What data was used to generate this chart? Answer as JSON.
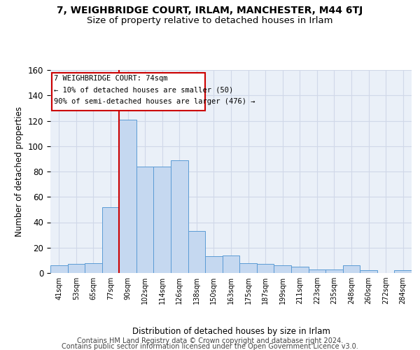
{
  "title": "7, WEIGHBRIDGE COURT, IRLAM, MANCHESTER, M44 6TJ",
  "subtitle": "Size of property relative to detached houses in Irlam",
  "xlabel": "Distribution of detached houses by size in Irlam",
  "ylabel": "Number of detached properties",
  "bar_labels": [
    "41sqm",
    "53sqm",
    "65sqm",
    "77sqm",
    "90sqm",
    "102sqm",
    "114sqm",
    "126sqm",
    "138sqm",
    "150sqm",
    "163sqm",
    "175sqm",
    "187sqm",
    "199sqm",
    "211sqm",
    "223sqm",
    "235sqm",
    "248sqm",
    "260sqm",
    "272sqm",
    "284sqm"
  ],
  "bar_values": [
    6,
    7,
    8,
    52,
    121,
    84,
    84,
    89,
    33,
    13,
    14,
    8,
    7,
    6,
    5,
    3,
    3,
    6,
    2,
    0,
    2
  ],
  "bar_color": "#c5d8f0",
  "bar_edge_color": "#5b9bd5",
  "vline_x": 3.5,
  "vline_color": "#cc0000",
  "annotation_line1": "7 WEIGHBRIDGE COURT: 74sqm",
  "annotation_line2": "← 10% of detached houses are smaller (50)",
  "annotation_line3": "90% of semi-detached houses are larger (476) →",
  "annotation_box_color": "#ffffff",
  "annotation_box_edge": "#cc0000",
  "footer_line1": "Contains HM Land Registry data © Crown copyright and database right 2024.",
  "footer_line2": "Contains public sector information licensed under the Open Government Licence v3.0.",
  "ylim": [
    0,
    160
  ],
  "yticks": [
    0,
    20,
    40,
    60,
    80,
    100,
    120,
    140,
    160
  ],
  "grid_color": "#d0d8e8",
  "bg_color": "#eaf0f8",
  "title_fontsize": 10,
  "subtitle_fontsize": 9.5,
  "footer_fontsize": 7
}
